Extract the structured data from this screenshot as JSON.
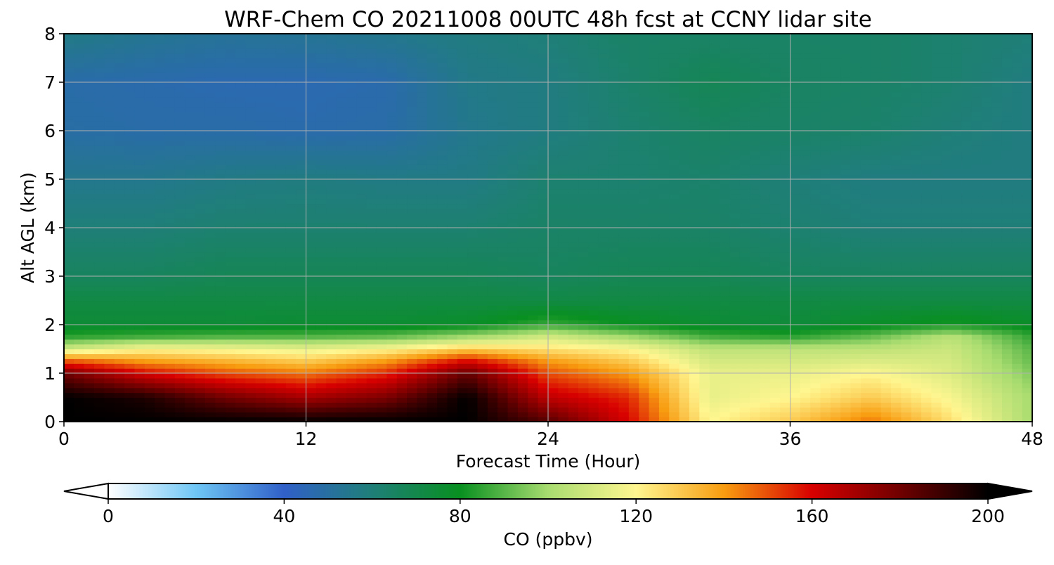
{
  "chart_data": {
    "type": "heatmap",
    "title": "WRF-Chem CO  20211008 00UTC 48h fcst at CCNY lidar site",
    "xlabel": "Forecast Time (Hour)",
    "ylabel": "Alt AGL (km)",
    "xlim": [
      0,
      48
    ],
    "ylim": [
      0,
      8
    ],
    "xticks": [
      "0",
      "12",
      "24",
      "36",
      "48"
    ],
    "yticks": [
      "0",
      "1",
      "2",
      "3",
      "4",
      "5",
      "6",
      "7",
      "8"
    ],
    "grid": true,
    "x_hours": [
      0,
      4,
      8,
      12,
      16,
      20,
      24,
      28,
      32,
      36,
      40,
      44,
      48
    ],
    "y_km": [
      0,
      0.5,
      1,
      1.25,
      1.5,
      1.75,
      2,
      2.5,
      3,
      4,
      5,
      6,
      7,
      8
    ],
    "co_ppbv": [
      [
        200,
        200,
        200,
        200,
        200,
        200,
        185,
        160,
        120,
        130,
        145,
        125,
        100
      ],
      [
        200,
        195,
        180,
        170,
        178,
        200,
        165,
        155,
        115,
        120,
        130,
        118,
        100
      ],
      [
        180,
        160,
        150,
        145,
        155,
        182,
        150,
        140,
        115,
        115,
        120,
        112,
        95
      ],
      [
        150,
        140,
        135,
        130,
        140,
        160,
        140,
        130,
        110,
        110,
        112,
        110,
        92
      ],
      [
        110,
        120,
        118,
        115,
        120,
        130,
        125,
        120,
        105,
        105,
        105,
        108,
        90
      ],
      [
        85,
        88,
        90,
        90,
        92,
        100,
        110,
        100,
        88,
        85,
        92,
        104,
        85
      ],
      [
        75,
        75,
        75,
        76,
        76,
        78,
        86,
        80,
        76,
        74,
        78,
        82,
        78
      ],
      [
        72,
        72,
        72,
        72,
        72,
        72,
        72,
        72,
        72,
        72,
        72,
        72,
        72
      ],
      [
        66,
        66,
        68,
        68,
        68,
        68,
        66,
        68,
        68,
        66,
        66,
        66,
        66
      ],
      [
        60,
        60,
        62,
        62,
        62,
        62,
        64,
        64,
        64,
        62,
        60,
        60,
        60
      ],
      [
        55,
        55,
        57,
        58,
        57,
        57,
        62,
        62,
        63,
        60,
        58,
        58,
        58
      ],
      [
        49,
        48,
        48,
        47,
        48,
        55,
        58,
        62,
        65,
        64,
        63,
        60,
        58
      ],
      [
        48,
        47,
        46,
        46,
        47,
        56,
        58,
        63,
        68,
        65,
        64,
        62,
        58
      ],
      [
        57,
        54,
        52,
        53,
        55,
        58,
        60,
        64,
        64,
        64,
        64,
        62,
        60
      ]
    ],
    "colorbar": {
      "label": "CO  (ppbv)",
      "min": 0,
      "max": 200,
      "ticks": [
        "0",
        "40",
        "80",
        "120",
        "160",
        "200"
      ],
      "extend": "both",
      "colors": [
        "#ffffff",
        "#6ec6f5",
        "#3060c8",
        "#1f7f78",
        "#089020",
        "#a8dc70",
        "#fff690",
        "#f89c10",
        "#d80000",
        "#700000",
        "#000000"
      ]
    }
  }
}
